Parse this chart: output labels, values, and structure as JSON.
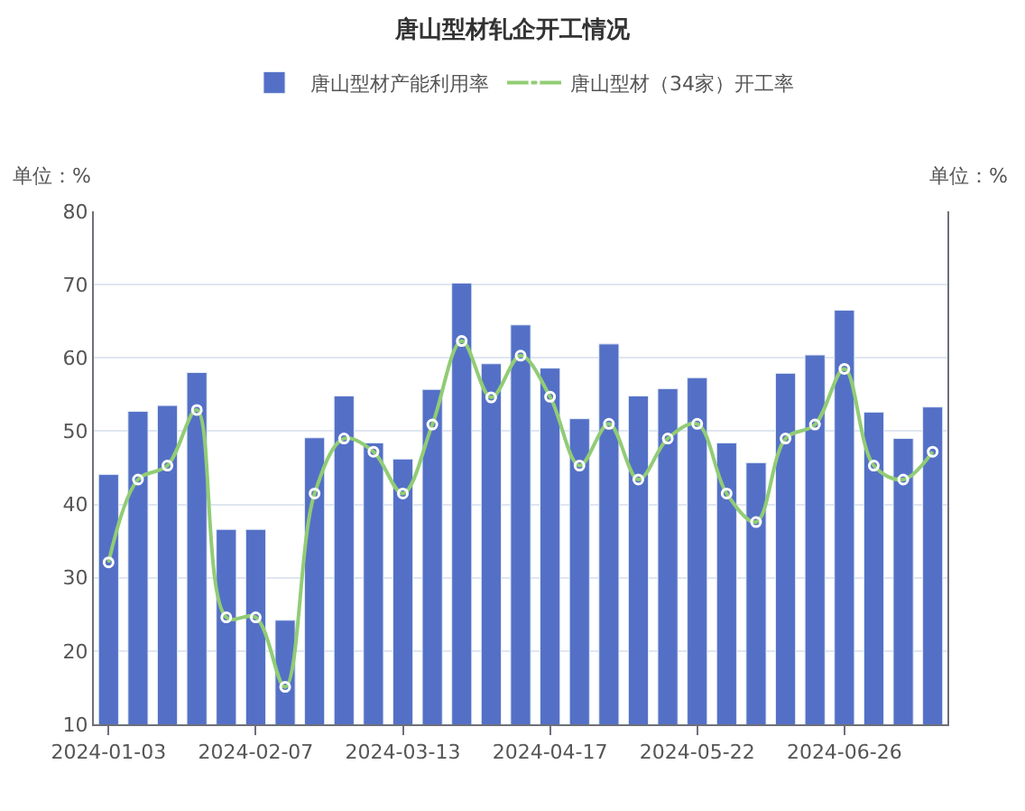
{
  "chart_data": {
    "type": "bar",
    "title": "唐山型材轧企开工情况",
    "ylabel": "单位：%",
    "annotations": [
      "单位：%"
    ],
    "categories": [
      "2024-01-03",
      null,
      null,
      null,
      null,
      "2024-02-07",
      null,
      null,
      null,
      null,
      "2024-03-13",
      null,
      null,
      null,
      null,
      "2024-04-17",
      null,
      null,
      null,
      null,
      "2024-05-22",
      null,
      null,
      null,
      null,
      "2024-06-26",
      null,
      null,
      null
    ],
    "series": [
      {
        "name": "唐山型材产能利用率",
        "color": "#5470c6",
        "values": [
          44.1,
          52.7,
          53.5,
          58.0,
          36.6,
          36.6,
          24.2,
          49.1,
          54.8,
          48.4,
          46.2,
          55.7,
          70.2,
          59.2,
          64.5,
          58.6,
          51.7,
          61.9,
          54.8,
          55.8,
          57.3,
          48.4,
          45.7,
          57.9,
          60.4,
          66.5,
          52.6,
          49.0,
          53.3
        ]
      },
      {
        "name": "唐山型材（34家）开工率",
        "type": "line",
        "color": "#91cc75",
        "marker": "circle",
        "values": [
          32.1,
          43.4,
          45.3,
          52.9,
          24.6,
          24.6,
          15.1,
          41.5,
          49.0,
          47.2,
          41.5,
          50.9,
          62.3,
          54.6,
          60.3,
          54.7,
          45.3,
          51.0,
          43.4,
          49.0,
          51.0,
          41.5,
          37.6,
          49.0,
          50.9,
          58.5,
          45.3,
          43.4,
          47.2
        ]
      }
    ],
    "ylim": [
      10,
      80
    ],
    "yticks": [
      10,
      20,
      30,
      40,
      50,
      60,
      70,
      80
    ],
    "grid": "y",
    "legend": "top"
  }
}
